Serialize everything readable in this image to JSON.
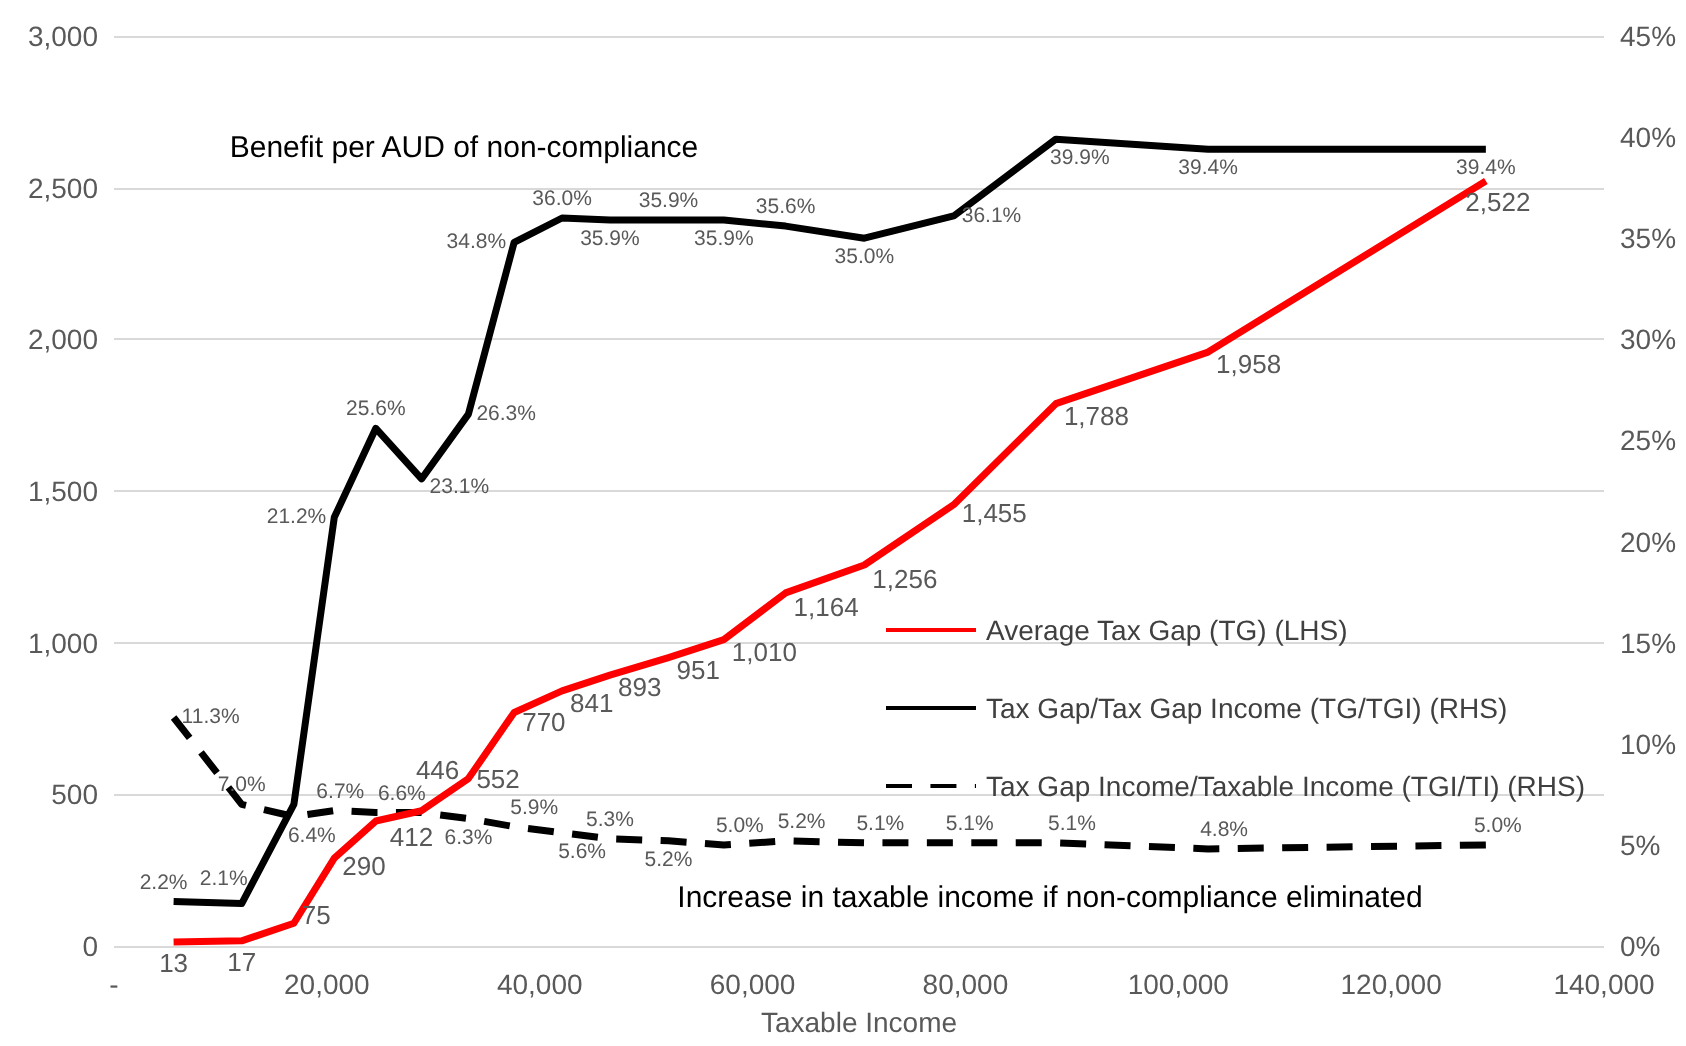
{
  "chart_data": {
    "type": "line",
    "xlabel": "Taxable Income",
    "x": [
      5600,
      12000,
      16900,
      20700,
      24600,
      28900,
      33300,
      37600,
      42100,
      46600,
      52100,
      57300,
      63100,
      70500,
      78900,
      88500,
      102800,
      128900
    ],
    "xlim": [
      0,
      140000
    ],
    "xticks": [
      {
        "value": 0,
        "label": "-"
      },
      {
        "value": 20000,
        "label": "20,000"
      },
      {
        "value": 40000,
        "label": "40,000"
      },
      {
        "value": 60000,
        "label": "60,000"
      },
      {
        "value": 80000,
        "label": "80,000"
      },
      {
        "value": 100000,
        "label": "100,000"
      },
      {
        "value": 120000,
        "label": "120,000"
      },
      {
        "value": 140000,
        "label": "140,000"
      }
    ],
    "ylim": [
      0,
      3000
    ],
    "yticks": [
      0,
      500,
      {
        "value": 1000,
        "label": "1,000"
      },
      {
        "value": 1500,
        "label": "1,500"
      },
      {
        "value": 2000,
        "label": "2,000"
      },
      {
        "value": 2500,
        "label": "2,500"
      },
      {
        "value": 3000,
        "label": "3,000"
      }
    ],
    "y2lim": [
      0,
      45
    ],
    "y2ticks": [
      {
        "value": 0,
        "label": "0%"
      },
      {
        "value": 5,
        "label": "5%"
      },
      {
        "value": 10,
        "label": "10%"
      },
      {
        "value": 15,
        "label": "15%"
      },
      {
        "value": 20,
        "label": "20%"
      },
      {
        "value": 25,
        "label": "25%"
      },
      {
        "value": 30,
        "label": "30%"
      },
      {
        "value": 35,
        "label": "35%"
      },
      {
        "value": 40,
        "label": "40%"
      },
      {
        "value": 45,
        "label": "45%"
      }
    ],
    "grid": "y",
    "legend": "right",
    "marker": "none",
    "annotations": [
      "Benefit per AUD of non-compliance",
      "Increase in taxable income if non-compliance eliminated"
    ],
    "series": [
      {
        "name": "Average Tax Gap (TG) (LHS)",
        "color": "#ff0000",
        "values": [
          13,
          17,
          75,
          290,
          412,
          446,
          552,
          770,
          841,
          893,
          951,
          1010,
          1164,
          1256,
          1455,
          1788,
          1958,
          2522
        ],
        "value_labels": [
          "13",
          "17",
          "75",
          "290",
          "412",
          "446",
          "552",
          "770",
          "841",
          "893",
          "951",
          "1,010",
          "1,164",
          "1,256",
          "1,455",
          "1,788",
          "1,958",
          "2,522"
        ]
      },
      {
        "name": "Tax Gap/Tax Gap Income (TG/TGI) (RHS)",
        "color": "#000000",
        "axis": "y2",
        "values": [
          2.2,
          2.1,
          7.0,
          21.2,
          25.6,
          23.1,
          26.3,
          34.8,
          36.0,
          35.9,
          35.9,
          35.9,
          35.6,
          35.0,
          36.1,
          39.9,
          39.4,
          39.4
        ],
        "value_labels": [
          "2.2%",
          "2.1%",
          null,
          "21.2%",
          "25.6%",
          "23.1%",
          "26.3%",
          "34.8%",
          "36.0%",
          "35.9%",
          "35.9%",
          "35.9%",
          "35.6%",
          "35.0%",
          "36.1%",
          "39.9%",
          "39.4%",
          "39.4%"
        ]
      },
      {
        "name": "Tax Gap Income/Taxable Income (TGI/TI) (RHS)",
        "color": "#000000",
        "axis": "y2",
        "line_style": "dashed",
        "values": [
          11.3,
          7.0,
          6.4,
          6.7,
          6.6,
          6.6,
          6.3,
          5.9,
          5.6,
          5.3,
          5.2,
          5.0,
          5.2,
          5.1,
          5.1,
          5.1,
          4.8,
          5.0
        ],
        "value_labels": [
          "11.3%",
          "7.0%",
          "6.4%",
          "6.7%",
          "6.6%",
          null,
          "6.3%",
          "5.9%",
          "5.6%",
          "5.3%",
          "5.2%",
          "5.0%",
          "5.2%",
          "5.1%",
          "5.1%",
          "5.1%",
          "4.8%",
          "5.0%"
        ]
      }
    ]
  }
}
